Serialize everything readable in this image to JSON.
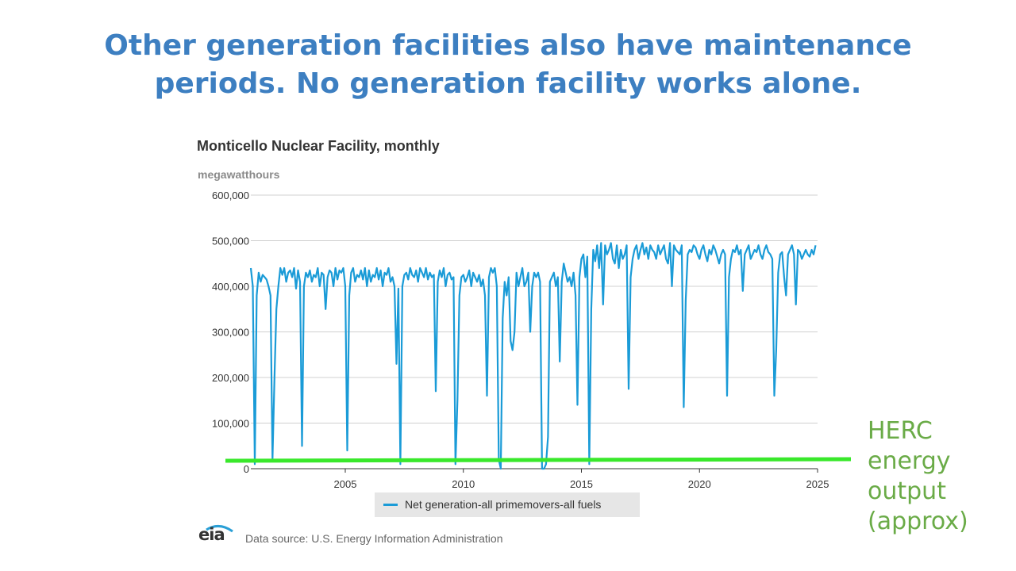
{
  "slide": {
    "title_line1": "Other generation facilities also have maintenance",
    "title_line2": "periods. No generation facility works alone."
  },
  "annotation": {
    "lines": [
      "HERC",
      "energy",
      "output",
      "(approx)"
    ],
    "color": "#6aab47",
    "line_color": "#39e82b"
  },
  "source": {
    "logo_text": "eia",
    "text": "Data source: U.S. Energy Information Administration"
  },
  "chart_data": {
    "type": "line",
    "title": "Monticello Nuclear Facility, monthly",
    "ylabel": "megawatthours",
    "xlabel": "",
    "ylim": [
      0,
      600000
    ],
    "xlim": [
      2001,
      2025
    ],
    "y_ticks": [
      0,
      100000,
      200000,
      300000,
      400000,
      500000,
      600000
    ],
    "y_tick_labels": [
      "0",
      "100,000",
      "200,000",
      "300,000",
      "400,000",
      "500,000",
      "600,000"
    ],
    "x_ticks": [
      2005,
      2010,
      2015,
      2020,
      2025
    ],
    "x_tick_labels": [
      "2005",
      "2010",
      "2015",
      "2020",
      "2025"
    ],
    "grid": true,
    "legend_position": "bottom",
    "series_color": "#1a9bd7",
    "series": [
      {
        "name": "Net generation-all primemovers-all fuels",
        "start_year": 2001,
        "values": [
          440000,
          400000,
          10000,
          380000,
          430000,
          410000,
          425000,
          420000,
          415000,
          400000,
          380000,
          20000,
          200000,
          350000,
          400000,
          440000,
          425000,
          440000,
          410000,
          430000,
          435000,
          420000,
          440000,
          395000,
          435000,
          410000,
          50000,
          400000,
          430000,
          420000,
          435000,
          410000,
          425000,
          420000,
          440000,
          400000,
          430000,
          425000,
          350000,
          420000,
          435000,
          430000,
          400000,
          440000,
          415000,
          435000,
          430000,
          440000,
          400000,
          40000,
          380000,
          430000,
          440000,
          410000,
          425000,
          420000,
          435000,
          415000,
          440000,
          400000,
          435000,
          410000,
          425000,
          420000,
          440000,
          415000,
          435000,
          400000,
          430000,
          425000,
          440000,
          410000,
          420000,
          400000,
          230000,
          395000,
          10000,
          400000,
          425000,
          430000,
          415000,
          440000,
          425000,
          420000,
          435000,
          410000,
          440000,
          430000,
          420000,
          440000,
          415000,
          430000,
          420000,
          425000,
          170000,
          410000,
          435000,
          420000,
          440000,
          400000,
          425000,
          430000,
          415000,
          420000,
          10000,
          150000,
          380000,
          420000,
          425000,
          410000,
          420000,
          435000,
          400000,
          430000,
          420000,
          410000,
          425000,
          400000,
          415000,
          380000,
          160000,
          420000,
          440000,
          430000,
          440000,
          400000,
          20000,
          0,
          330000,
          410000,
          380000,
          420000,
          280000,
          260000,
          300000,
          430000,
          400000,
          420000,
          440000,
          400000,
          410000,
          430000,
          300000,
          400000,
          430000,
          420000,
          430000,
          410000,
          0,
          0,
          10000,
          70000,
          410000,
          420000,
          430000,
          400000,
          420000,
          235000,
          410000,
          450000,
          430000,
          410000,
          420000,
          400000,
          430000,
          380000,
          140000,
          420000,
          460000,
          470000,
          420000,
          465000,
          10000,
          350000,
          480000,
          455000,
          490000,
          440000,
          495000,
          360000,
          490000,
          470000,
          480000,
          495000,
          460000,
          450000,
          490000,
          440000,
          480000,
          460000,
          470000,
          490000,
          175000,
          420000,
          460000,
          480000,
          490000,
          460000,
          480000,
          495000,
          470000,
          485000,
          460000,
          490000,
          480000,
          475000,
          460000,
          490000,
          470000,
          480000,
          490000,
          460000,
          450000,
          495000,
          400000,
          490000,
          480000,
          475000,
          470000,
          490000,
          135000,
          370000,
          470000,
          480000,
          475000,
          490000,
          485000,
          470000,
          460000,
          480000,
          490000,
          470000,
          455000,
          480000,
          470000,
          490000,
          480000,
          465000,
          450000,
          470000,
          480000,
          470000,
          160000,
          420000,
          460000,
          480000,
          475000,
          490000,
          470000,
          480000,
          390000,
          470000,
          480000,
          490000,
          460000,
          470000,
          480000,
          475000,
          490000,
          470000,
          460000,
          480000,
          490000,
          475000,
          470000,
          460000,
          160000,
          260000,
          430000,
          470000,
          475000,
          420000,
          380000,
          470000,
          480000,
          490000,
          470000,
          360000,
          480000,
          475000,
          460000,
          470000,
          480000,
          470000,
          465000,
          480000,
          470000,
          490000
        ]
      }
    ]
  }
}
